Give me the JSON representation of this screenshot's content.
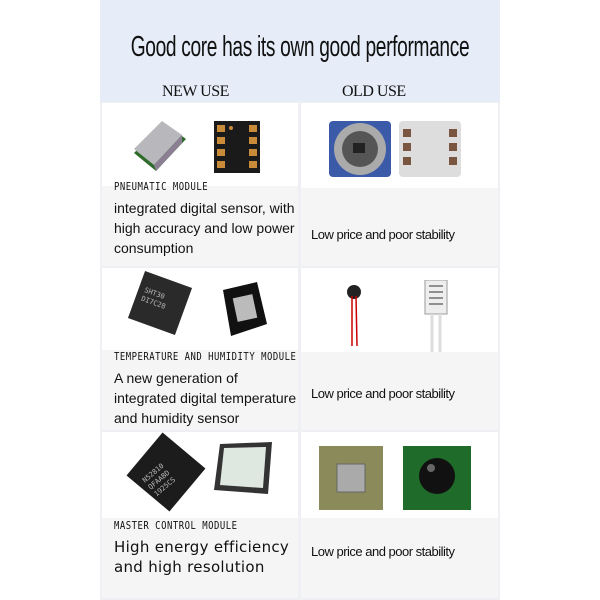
{
  "title": "Good core has its own good performance",
  "columns": {
    "new": "NEW USE",
    "old": "OLD USE"
  },
  "rows": [
    {
      "module": "PNEUMATIC MODULE",
      "description": "integrated digital sensor, with high accuracy and low power consumption",
      "old_description": "Low price and poor stability"
    },
    {
      "module": "TEMPERATURE AND HUMIDITY MODULE",
      "description": "A new generation of integrated digital temperature and humidity sensor",
      "old_description": "Low price and poor stability",
      "chip_marking": "SHT30 DI7C28"
    },
    {
      "module": "MASTER CONTROL MODULE",
      "description": "High energy efficiency and high resolution",
      "old_description": "Low price and poor stability",
      "chip_marking": "N52810 QFAABD 1925CS"
    }
  ],
  "colors": {
    "header": "#e6edf8",
    "cell_lower": "#f5f5f5"
  }
}
